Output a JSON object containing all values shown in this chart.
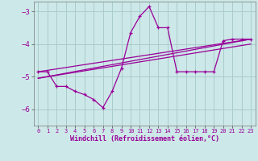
{
  "xlabel": "Windchill (Refroidissement éolien,°C)",
  "background_color": "#cde8e8",
  "grid_color": "#aacccc",
  "line_color": "#990099",
  "xlim": [
    -0.5,
    23.5
  ],
  "ylim": [
    -6.5,
    -2.7
  ],
  "yticks": [
    -6,
    -5,
    -4,
    -3
  ],
  "xtick_labels": [
    "0",
    "1",
    "2",
    "3",
    "4",
    "5",
    "6",
    "7",
    "8",
    "9",
    "10",
    "11",
    "12",
    "13",
    "14",
    "15",
    "16",
    "17",
    "18",
    "19",
    "20",
    "21",
    "22",
    "23"
  ],
  "line1_x": [
    0,
    1,
    2,
    3,
    4,
    5,
    6,
    7,
    8,
    9,
    10,
    11,
    12,
    13,
    14,
    15,
    16,
    17,
    18,
    19,
    20,
    21,
    22,
    23
  ],
  "line1_y": [
    -4.85,
    -4.85,
    -5.3,
    -5.3,
    -5.45,
    -5.55,
    -5.7,
    -5.95,
    -5.45,
    -4.75,
    -3.65,
    -3.15,
    -2.85,
    -3.5,
    -3.5,
    -4.85,
    -4.85,
    -4.85,
    -4.85,
    -4.85,
    -3.9,
    -3.85,
    -3.85,
    -3.85
  ],
  "line2_x": [
    0,
    23
  ],
  "line2_y": [
    -4.85,
    -3.85
  ],
  "line3_x": [
    0,
    23
  ],
  "line3_y": [
    -5.05,
    -4.0
  ],
  "line4_x": [
    0,
    23
  ],
  "line4_y": [
    -5.05,
    -3.85
  ]
}
